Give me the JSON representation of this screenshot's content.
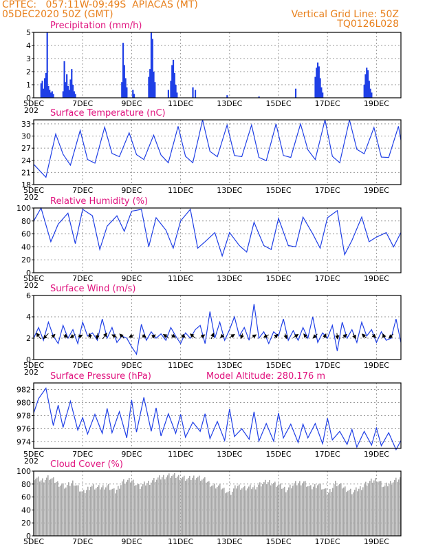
{
  "header": {
    "line1_left": "CPTEC:   057:11W-09:49S  APIACAS (MT)",
    "line2_left": "05DEC2020 50Z (GMT)",
    "line1_right": "Vertical Grid Line: 50Z",
    "line2_right": "TQ0126L028"
  },
  "colors": {
    "header": "#e8801c",
    "title": "#e0137e",
    "series": "#1f3fe6",
    "cloud": "#a8a8a8",
    "grid": "#999999"
  },
  "x_axis": {
    "labels": [
      "5DEC",
      "7DEC",
      "9DEC",
      "11DEC",
      "13DEC",
      "15DEC",
      "17DEC",
      "19DEC"
    ],
    "label_days": [
      5,
      7,
      9,
      11,
      13,
      15,
      17,
      19
    ],
    "range_days": [
      5,
      20
    ],
    "year_fragment": "202"
  },
  "chart_data": [
    {
      "id": "precip",
      "type": "bar",
      "title": "Precipitation (mm/h)",
      "ylim": [
        0,
        5
      ],
      "yticks": [
        0,
        1,
        2,
        3,
        4,
        5
      ],
      "x_days": [
        5.3,
        5.35,
        5.4,
        5.45,
        5.5,
        5.55,
        5.6,
        5.65,
        5.7,
        5.75,
        5.8,
        6.2,
        6.25,
        6.3,
        6.35,
        6.4,
        6.45,
        6.5,
        6.55,
        6.6,
        6.65,
        6.7,
        8.6,
        8.65,
        8.7,
        8.75,
        8.8,
        9.05,
        9.1,
        9.7,
        9.75,
        9.8,
        9.85,
        9.9,
        9.95,
        10.5,
        10.6,
        10.65,
        10.7,
        10.75,
        10.8,
        10.85,
        11.5,
        11.6,
        12.9,
        14.2,
        15.7,
        16.5,
        16.55,
        16.6,
        16.65,
        16.7,
        16.75,
        16.8,
        18.5,
        18.55,
        18.6,
        18.65,
        18.7,
        18.75,
        18.8
      ],
      "values": [
        1.1,
        1.3,
        0.7,
        1.5,
        1.9,
        5.0,
        0.9,
        0.6,
        0.4,
        0.5,
        0.3,
        0.5,
        2.8,
        1.2,
        1.8,
        0.9,
        0.6,
        1.4,
        2.2,
        1.0,
        0.5,
        0.3,
        1.2,
        4.2,
        2.5,
        1.5,
        0.8,
        0.6,
        0.3,
        1.6,
        2.2,
        5.0,
        4.5,
        2.0,
        1.2,
        0.6,
        1.3,
        2.5,
        2.9,
        1.9,
        1.0,
        0.4,
        0.8,
        0.6,
        0.2,
        0.1,
        0.7,
        1.6,
        2.3,
        2.7,
        2.4,
        1.5,
        0.8,
        0.4,
        1.0,
        1.8,
        2.3,
        2.1,
        1.3,
        0.7,
        0.4
      ]
    },
    {
      "id": "temp",
      "type": "line",
      "title": "Surface Temperature (nC)",
      "ylim": [
        18,
        34
      ],
      "yticks": [
        18,
        21,
        24,
        27,
        30,
        33
      ],
      "x_days": [
        5.0,
        5.5,
        5.9,
        6.2,
        6.5,
        6.9,
        7.2,
        7.5,
        7.9,
        8.2,
        8.5,
        8.9,
        9.2,
        9.5,
        9.9,
        10.2,
        10.5,
        10.9,
        11.2,
        11.5,
        11.9,
        12.2,
        12.5,
        12.9,
        13.2,
        13.5,
        13.9,
        14.2,
        14.5,
        14.9,
        15.2,
        15.5,
        15.9,
        16.2,
        16.5,
        16.9,
        17.2,
        17.5,
        17.9,
        18.2,
        18.5,
        18.9,
        19.2,
        19.5,
        19.9,
        20.0
      ],
      "values": [
        23.0,
        19.8,
        30.5,
        25.5,
        22.8,
        31.4,
        24.2,
        23.3,
        32.2,
        25.7,
        24.9,
        30.8,
        25.4,
        24.2,
        30.2,
        25.3,
        23.4,
        32.4,
        25.0,
        23.4,
        34.0,
        26.2,
        24.9,
        32.7,
        25.2,
        24.9,
        32.7,
        24.7,
        23.9,
        33.0,
        25.2,
        24.7,
        33.0,
        26.6,
        24.2,
        34.0,
        25.0,
        23.4,
        34.0,
        26.7,
        25.6,
        32.1,
        24.8,
        24.7,
        32.4,
        29.0
      ]
    },
    {
      "id": "rh",
      "type": "line",
      "title": "Relative Humidity (%)",
      "ylim": [
        0,
        100
      ],
      "yticks": [
        0,
        20,
        40,
        60,
        80,
        100
      ],
      "x_days": [
        5.0,
        5.3,
        5.7,
        6.0,
        6.4,
        6.7,
        7.0,
        7.4,
        7.7,
        8.0,
        8.4,
        8.7,
        9.0,
        9.4,
        9.7,
        10.0,
        10.4,
        10.7,
        11.0,
        11.4,
        11.7,
        12.0,
        12.4,
        12.7,
        13.0,
        13.4,
        13.7,
        14.0,
        14.4,
        14.7,
        15.0,
        15.4,
        15.7,
        16.0,
        16.4,
        16.7,
        17.0,
        17.4,
        17.7,
        18.0,
        18.4,
        18.7,
        19.0,
        19.4,
        19.7,
        20.0
      ],
      "values": [
        80,
        100,
        48,
        75,
        92,
        45,
        98,
        88,
        36,
        72,
        88,
        64,
        95,
        98,
        40,
        85,
        66,
        38,
        80,
        98,
        38,
        48,
        62,
        26,
        62,
        42,
        32,
        78,
        42,
        36,
        84,
        42,
        40,
        86,
        60,
        38,
        85,
        96,
        28,
        50,
        86,
        48,
        55,
        62,
        40,
        62
      ]
    },
    {
      "id": "wind",
      "type": "line",
      "title": "Surface Wind (m/s)",
      "ylim": [
        0,
        6
      ],
      "yticks": [
        0,
        2,
        4,
        6
      ],
      "x_days": [
        5.0,
        5.2,
        5.4,
        5.6,
        5.8,
        6.0,
        6.2,
        6.4,
        6.6,
        6.8,
        7.0,
        7.2,
        7.4,
        7.6,
        7.8,
        8.0,
        8.2,
        8.4,
        8.6,
        8.8,
        9.0,
        9.2,
        9.4,
        9.6,
        9.8,
        10.0,
        10.2,
        10.4,
        10.6,
        10.8,
        11.0,
        11.2,
        11.4,
        11.6,
        11.8,
        12.0,
        12.2,
        12.4,
        12.6,
        12.8,
        13.0,
        13.2,
        13.4,
        13.6,
        13.8,
        14.0,
        14.2,
        14.4,
        14.6,
        14.8,
        15.0,
        15.2,
        15.4,
        15.6,
        15.8,
        16.0,
        16.2,
        16.4,
        16.6,
        16.8,
        17.0,
        17.2,
        17.4,
        17.6,
        17.8,
        18.0,
        18.2,
        18.4,
        18.6,
        18.8,
        19.0,
        19.2,
        19.4,
        19.6,
        19.8,
        20.0
      ],
      "values": [
        2.0,
        3.0,
        1.8,
        3.5,
        2.2,
        1.5,
        3.2,
        2.0,
        2.8,
        1.5,
        3.5,
        2.2,
        2.5,
        1.8,
        3.8,
        2.0,
        3.0,
        1.6,
        2.2,
        2.0,
        1.2,
        0.5,
        3.3,
        1.8,
        2.6,
        2.0,
        2.4,
        1.8,
        3.0,
        2.2,
        1.5,
        2.5,
        2.0,
        2.8,
        3.2,
        1.5,
        4.5,
        2.0,
        3.5,
        1.8,
        2.8,
        4.0,
        2.2,
        3.0,
        1.8,
        5.2,
        2.0,
        2.6,
        1.5,
        2.6,
        2.2,
        3.8,
        1.8,
        2.7,
        1.8,
        3.0,
        2.0,
        4.0,
        1.6,
        2.5,
        2.0,
        3.2,
        0.8,
        3.5,
        2.0,
        2.8,
        1.6,
        3.5,
        2.2,
        2.8,
        1.6,
        2.6,
        1.8,
        2.0,
        3.8,
        1.6
      ],
      "vectors": {
        "x_days": [
          5.2,
          5.5,
          5.8,
          6.3,
          6.6,
          6.9,
          7.3,
          7.6,
          7.9,
          8.3,
          8.6,
          9.0,
          9.5,
          9.9,
          10.4,
          10.7,
          11.1,
          11.5,
          11.9,
          12.3,
          12.7,
          13.1,
          13.5,
          14.0,
          14.5,
          14.9,
          15.3,
          15.7,
          16.1,
          16.5,
          16.9,
          17.4,
          17.7,
          18.1,
          18.5,
          18.9,
          19.3,
          19.6
        ],
        "u": [
          -0.5,
          -0.6,
          0.4,
          0.5,
          -0.6,
          0.5,
          -0.2,
          -0.1,
          0.5,
          -0.6,
          -0.5,
          -0.6,
          0.5,
          0.4,
          -0.6,
          0.5,
          0.5,
          -0.6,
          0.5,
          0.3,
          -0.4,
          0.6,
          -0.2,
          0.5,
          -0.6,
          0.4,
          0.2,
          0.6,
          -0.4,
          -0.5,
          0.2,
          0.1,
          0.5,
          0.3,
          -0.5,
          0.4,
          -0.2,
          -0.5
        ],
        "v": [
          0.7,
          -0.6,
          0.4,
          -0.3,
          -0.4,
          0.2,
          0.6,
          -0.7,
          0.7,
          0.3,
          0.5,
          -0.3,
          -0.3,
          0.3,
          0.4,
          -0.3,
          -0.3,
          0.5,
          0.3,
          0.7,
          -0.4,
          0.4,
          -0.6,
          0.3,
          -0.3,
          0.4,
          -0.6,
          0.4,
          0.5,
          -0.5,
          0.5,
          -0.7,
          0.4,
          -0.6,
          0.5,
          -0.4,
          0.5,
          -0.5
        ]
      }
    },
    {
      "id": "pressure",
      "type": "line",
      "title": "Surface Pressure (hPa)",
      "annotation": "Model Altitude: 280.176 m",
      "ylim": [
        973,
        983
      ],
      "yticks": [
        974,
        976,
        978,
        980,
        982
      ],
      "x_days": [
        5.0,
        5.2,
        5.5,
        5.8,
        6.0,
        6.2,
        6.5,
        6.8,
        7.0,
        7.2,
        7.5,
        7.8,
        8.0,
        8.2,
        8.5,
        8.8,
        9.0,
        9.2,
        9.5,
        9.8,
        10.0,
        10.2,
        10.5,
        10.8,
        11.0,
        11.2,
        11.5,
        11.8,
        12.0,
        12.2,
        12.5,
        12.8,
        13.0,
        13.2,
        13.5,
        13.8,
        14.0,
        14.2,
        14.5,
        14.8,
        15.0,
        15.2,
        15.5,
        15.8,
        16.0,
        16.2,
        16.5,
        16.8,
        17.0,
        17.2,
        17.5,
        17.8,
        18.0,
        18.2,
        18.5,
        18.8,
        19.0,
        19.2,
        19.5,
        19.8,
        20.0
      ],
      "values": [
        978.4,
        980.6,
        982.2,
        976.5,
        979.6,
        976.2,
        980.2,
        975.8,
        977.7,
        975.2,
        978.2,
        975.3,
        979.1,
        975.4,
        978.6,
        974.6,
        980.4,
        975.5,
        980.8,
        975.6,
        979.2,
        974.9,
        978.3,
        975.3,
        978.2,
        974.7,
        977.0,
        975.6,
        978.3,
        974.5,
        977.1,
        974.2,
        979.0,
        974.8,
        976.0,
        974.4,
        978.6,
        974.1,
        976.8,
        974.1,
        978.4,
        974.6,
        976.7,
        973.9,
        976.7,
        974.6,
        976.8,
        973.7,
        977.6,
        974.3,
        975.6,
        973.6,
        975.9,
        973.2,
        975.6,
        973.5,
        976.1,
        973.4,
        975.4,
        972.8,
        974.2
      ]
    },
    {
      "id": "cloud",
      "type": "area",
      "title": "Cloud Cover (%)",
      "ylim": [
        0,
        100
      ],
      "yticks": [
        0,
        20,
        40,
        60,
        80,
        100
      ],
      "x_days": [
        5.0,
        5.3,
        5.6,
        6.0,
        6.3,
        6.6,
        7.0,
        7.3,
        7.6,
        8.0,
        8.3,
        8.6,
        9.0,
        9.3,
        9.6,
        10.0,
        10.3,
        10.6,
        11.0,
        11.3,
        11.6,
        12.0,
        12.3,
        12.6,
        13.0,
        13.3,
        13.6,
        14.0,
        14.3,
        14.6,
        15.0,
        15.3,
        15.6,
        16.0,
        16.3,
        16.6,
        17.0,
        17.3,
        17.6,
        18.0,
        18.3,
        18.6,
        19.0,
        19.3,
        19.6,
        20.0
      ],
      "values": [
        94,
        90,
        95,
        85,
        80,
        88,
        70,
        82,
        78,
        82,
        72,
        88,
        90,
        80,
        86,
        92,
        96,
        98,
        95,
        92,
        96,
        90,
        82,
        80,
        70,
        82,
        78,
        80,
        85,
        88,
        82,
        76,
        84,
        88,
        78,
        85,
        70,
        86,
        80,
        72,
        78,
        86,
        92,
        80,
        88,
        94
      ]
    }
  ]
}
